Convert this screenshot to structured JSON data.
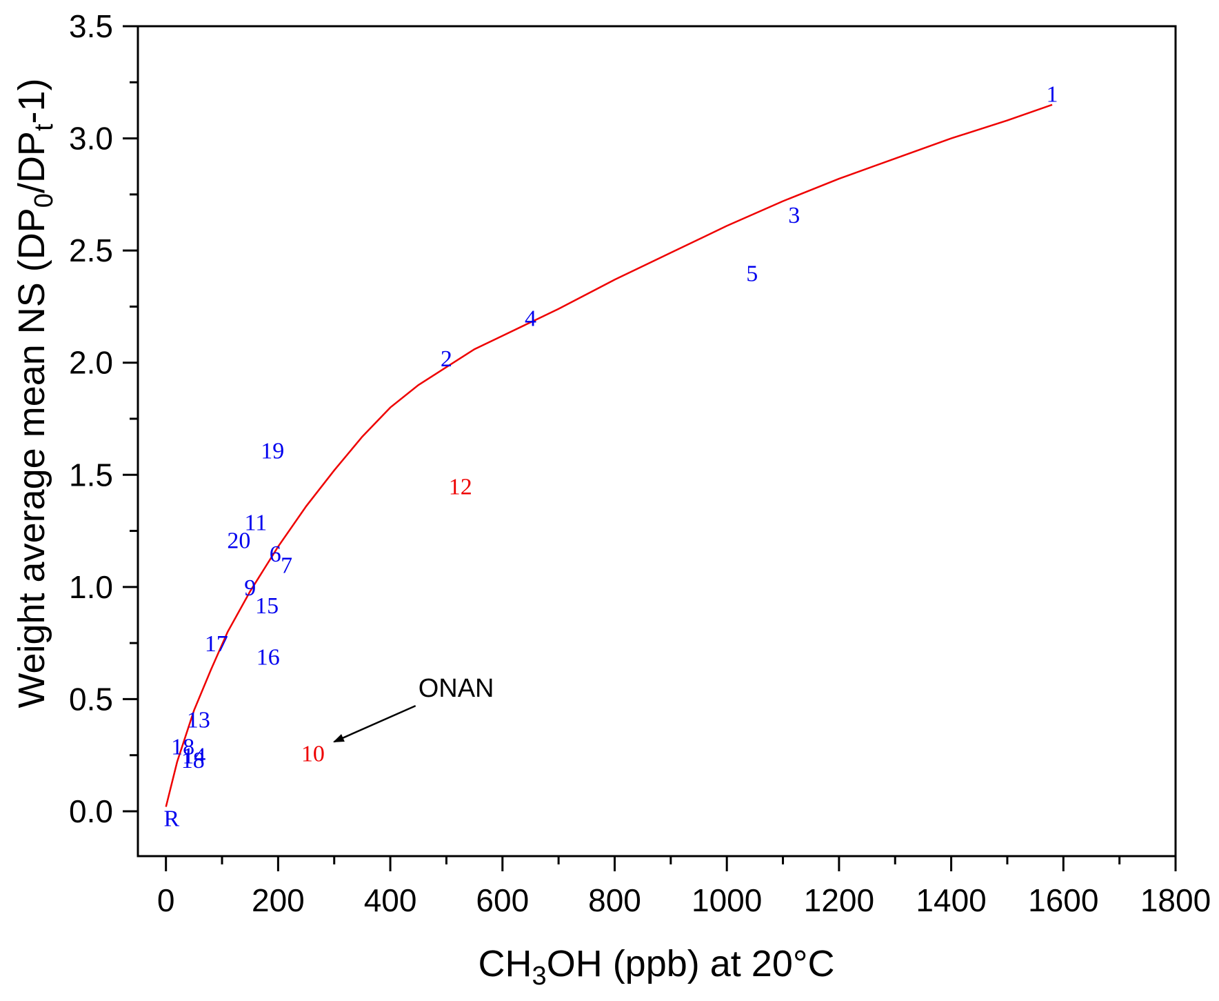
{
  "chart_data": {
    "type": "scatter",
    "title": "",
    "xlabel": {
      "prefix": "CH",
      "sub": "3",
      "suffix": "OH (ppb) at 20°C"
    },
    "ylabel": {
      "parts": [
        {
          "t": "Weight average mean NS (DP",
          "sub": false
        },
        {
          "t": "0",
          "sub": true
        },
        {
          "t": "/DP",
          "sub": false
        },
        {
          "t": "t",
          "sub": true
        },
        {
          "t": "-1)",
          "sub": false
        }
      ]
    },
    "xlim": [
      -50,
      1800
    ],
    "ylim": [
      -0.2,
      3.5
    ],
    "xticks": [
      0,
      200,
      400,
      600,
      800,
      1000,
      1200,
      1400,
      1600,
      1800
    ],
    "xtick_labels": [
      "0",
      "200",
      "400",
      "600",
      "800",
      "1000",
      "1200",
      "1400",
      "1600",
      "1800"
    ],
    "yticks": [
      0.0,
      0.5,
      1.0,
      1.5,
      2.0,
      2.5,
      3.0,
      3.5
    ],
    "ytick_labels": [
      "0.0",
      "0.5",
      "1.0",
      "1.5",
      "2.0",
      "2.5",
      "3.0",
      "3.5"
    ],
    "points": [
      {
        "label": "1",
        "x": 1580,
        "y": 3.2,
        "color": "#0000ee"
      },
      {
        "label": "2",
        "x": 500,
        "y": 2.02,
        "color": "#0000ee"
      },
      {
        "label": "3",
        "x": 1120,
        "y": 2.66,
        "color": "#0000ee"
      },
      {
        "label": "4",
        "x": 650,
        "y": 2.2,
        "color": "#0000ee"
      },
      {
        "label": "5",
        "x": 1045,
        "y": 2.4,
        "color": "#0000ee"
      },
      {
        "label": "6",
        "x": 195,
        "y": 1.15,
        "color": "#0000ee"
      },
      {
        "label": "7",
        "x": 215,
        "y": 1.1,
        "color": "#0000ee"
      },
      {
        "label": "9",
        "x": 150,
        "y": 1.0,
        "color": "#0000ee"
      },
      {
        "label": "10",
        "x": 262,
        "y": 0.26,
        "color": "#ee0000"
      },
      {
        "label": "11",
        "x": 160,
        "y": 1.29,
        "color": "#0000ee"
      },
      {
        "label": "12",
        "x": 525,
        "y": 1.45,
        "color": "#ee0000"
      },
      {
        "label": "13",
        "x": 58,
        "y": 0.41,
        "color": "#0000ee"
      },
      {
        "label": "14",
        "x": 50,
        "y": 0.25,
        "color": "#0000ee"
      },
      {
        "label": "15",
        "x": 180,
        "y": 0.92,
        "color": "#0000ee"
      },
      {
        "label": "16",
        "x": 182,
        "y": 0.69,
        "color": "#0000ee"
      },
      {
        "label": "17",
        "x": 90,
        "y": 0.75,
        "color": "#0000ee"
      },
      {
        "label": "18",
        "x": 30,
        "y": 0.29,
        "color": "#0000ee"
      },
      {
        "label": "18",
        "x": 48,
        "y": 0.23,
        "color": "#0000ee"
      },
      {
        "label": "19",
        "x": 190,
        "y": 1.61,
        "color": "#0000ee"
      },
      {
        "label": "20",
        "x": 130,
        "y": 1.21,
        "color": "#0000ee"
      },
      {
        "label": "R",
        "x": 10,
        "y": -0.03,
        "color": "#0000ee"
      }
    ],
    "fit_curve": {
      "color": "#ee0000",
      "x": [
        0,
        20,
        50,
        80,
        110,
        150,
        200,
        250,
        300,
        350,
        400,
        450,
        500,
        550,
        600,
        650,
        700,
        800,
        900,
        1000,
        1100,
        1200,
        1300,
        1400,
        1500,
        1580
      ],
      "y": [
        0.02,
        0.22,
        0.45,
        0.63,
        0.8,
        0.98,
        1.18,
        1.36,
        1.52,
        1.67,
        1.8,
        1.9,
        1.98,
        2.06,
        2.12,
        2.18,
        2.24,
        2.37,
        2.49,
        2.61,
        2.72,
        2.82,
        2.91,
        3.0,
        3.08,
        3.15
      ]
    },
    "annotations": [
      {
        "text": "ONAN",
        "x": 445,
        "y": 0.51,
        "arrow_from": [
          445,
          0.47
        ],
        "arrow_to": [
          300,
          0.31
        ]
      }
    ]
  }
}
